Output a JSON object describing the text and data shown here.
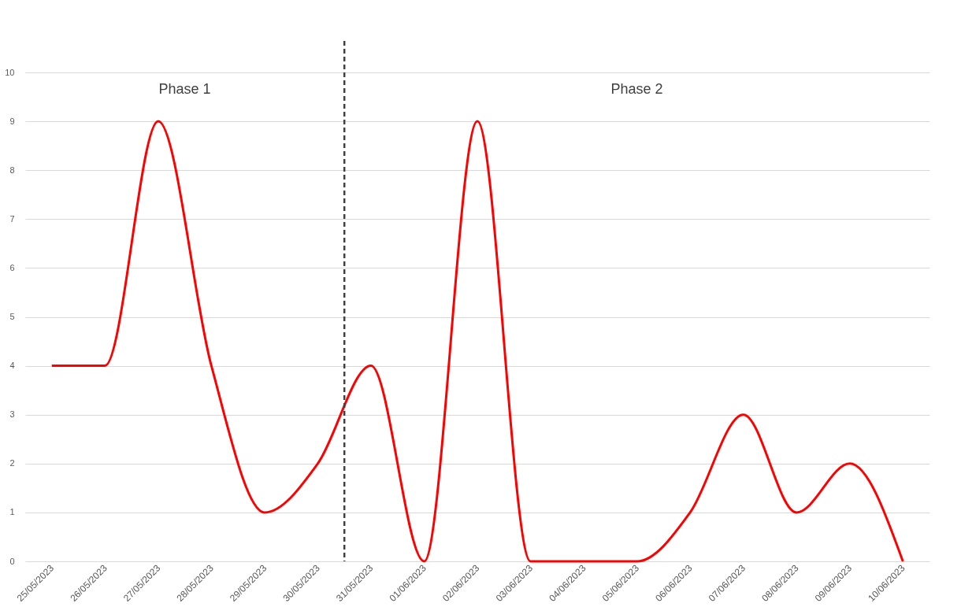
{
  "chart_data": {
    "type": "line",
    "x": [
      "2023-05-25",
      "2023-05-26",
      "2023-05-27",
      "2023-05-28",
      "2023-05-29",
      "2023-05-30",
      "2023-05-31",
      "2023-06-01",
      "2023-06-02",
      "2023-06-03",
      "2023-06-04",
      "2023-06-05",
      "2023-06-06",
      "2023-06-07",
      "2023-06-08",
      "2023-06-09",
      "2023-06-10"
    ],
    "series": [
      {
        "color": "#ff0000",
        "values": [
          4,
          4,
          9,
          4,
          1,
          2,
          4,
          0,
          9,
          0,
          0,
          0,
          1,
          3,
          1,
          2,
          0
        ]
      }
    ],
    "xlim": [
      "2023-05-24T12:00",
      "2023-06-10T12:00"
    ],
    "xticks": [
      {
        "value": "2023-05-25",
        "label": "25/05/2023"
      },
      {
        "value": "2023-05-26",
        "label": "26/05/2023"
      },
      {
        "value": "2023-05-27",
        "label": "27/05/2023"
      },
      {
        "value": "2023-05-28",
        "label": "28/05/2023"
      },
      {
        "value": "2023-05-29",
        "label": "29/05/2023"
      },
      {
        "value": "2023-05-30",
        "label": "30/05/2023"
      },
      {
        "value": "2023-05-31",
        "label": "31/05/2023"
      },
      {
        "value": "2023-06-01",
        "label": "01/06/2023"
      },
      {
        "value": "2023-06-02",
        "label": "02/06/2023"
      },
      {
        "value": "2023-06-03",
        "label": "03/06/2023"
      },
      {
        "value": "2023-06-04",
        "label": "04/06/2023"
      },
      {
        "value": "2023-06-05",
        "label": "05/06/2023"
      },
      {
        "value": "2023-06-06",
        "label": "06/06/2023"
      },
      {
        "value": "2023-06-07",
        "label": "07/06/2023"
      },
      {
        "value": "2023-06-08",
        "label": "08/06/2023"
      },
      {
        "value": "2023-06-09",
        "label": "09/06/2023"
      },
      {
        "value": "2023-06-10",
        "label": "10/06/2023"
      }
    ],
    "ylim": [
      0,
      10
    ],
    "yticks": [
      0,
      1,
      2,
      3,
      4,
      5,
      6,
      7,
      8,
      9,
      10
    ],
    "grid": "y",
    "marker": "none",
    "line_style": "solid",
    "ref_lines": [
      {
        "axis": "x",
        "value": "2023-05-30T12:00",
        "color": "#404040",
        "line_style": "dashed"
      }
    ],
    "annotations": [
      "Phase 1",
      "Phase 2"
    ]
  }
}
